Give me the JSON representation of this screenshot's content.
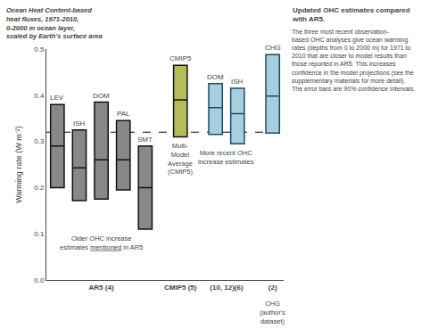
{
  "chart_data": {
    "type": "box",
    "categories": [
      "LEV",
      "ISH",
      "DOM",
      "PAL",
      "SMT",
      "CMIP5",
      "DOM",
      "ISH",
      "CHG"
    ],
    "median": [
      0.29,
      0.243,
      0.26,
      0.26,
      0.2,
      0.39,
      0.373,
      0.36,
      0.398
    ],
    "box_low": [
      0.2,
      0.172,
      0.175,
      0.195,
      0.11,
      0.31,
      0.315,
      0.295,
      0.318
    ],
    "box_high": [
      0.38,
      0.325,
      0.385,
      0.345,
      0.29,
      0.465,
      0.425,
      0.415,
      0.488
    ],
    "colors": [
      "#888888",
      "#888888",
      "#888888",
      "#888888",
      "#888888",
      "#b5bd5a",
      "#a8cfe0",
      "#a8cfe0",
      "#a8cfe0"
    ],
    "median_colors": [
      "#111111",
      "#111111",
      "#111111",
      "#111111",
      "#111111",
      "#111111",
      "#1a4a6b",
      "#1a4a6b",
      "#1a4a6b"
    ],
    "groups": [
      "AR5 (4)",
      "AR5 (4)",
      "AR5 (4)",
      "AR5 (4)",
      "AR5 (4)",
      "CMIP5 (5)",
      "(10, 12)(6)",
      "(10, 12)(6)",
      "(2)"
    ],
    "ylabel": "Warming rate (W m⁻²)",
    "ylim": [
      0,
      0.5
    ],
    "yticks": [
      {
        "value": 0,
        "label": "0.0"
      },
      0.1,
      0.2,
      0.3,
      0.4,
      0.5
    ],
    "grid": false,
    "reference_line": 0.32,
    "annotations": [
      {
        "text": "Older OHC increase\nestimates mentioned in AR5",
        "underline": "mentioned",
        "group": "AR5 (4)"
      },
      {
        "text": "Multi-\nModel\nAverage\n(CMIP5)",
        "group": "CMIP5 (5)"
      },
      {
        "text": "More recent OHC\nincrease estimates",
        "group": "(10, 12)(6)"
      }
    ],
    "group_notes": [
      {
        "text": "CHG\n(author's\ndataset)",
        "group": "(2)"
      }
    ],
    "side_label": "Ocean Heat Content-based\nheat fluxes, 1971-2010,\n0-2000 m ocean layer,\nscaled by Earth's surface area",
    "title": "Updated OHC estimates compared\nwith AR5.",
    "subtitle": "The three most recent observation-\nbased OHC analyses give ocean warming\nrates (depths from 0 to 2000 m) for 1971 to\n2010 that are closer to model results than\nthose reported in AR5. This increases\nconfidence in the model projections (see the\nsupplementary materials for more detail).\nThe error bars are 90% confidence intervals."
  }
}
